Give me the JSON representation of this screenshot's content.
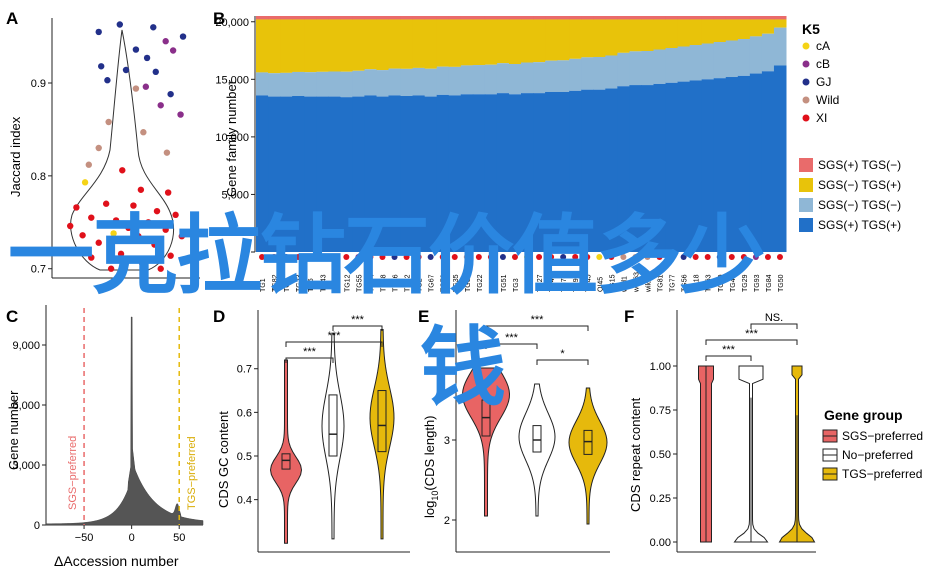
{
  "overlay": {
    "line1": "一克拉钻石价值多少",
    "line2": "钱"
  },
  "panels": {
    "A": "A",
    "B": "B",
    "C": "C",
    "D": "D",
    "E": "E",
    "F": "F"
  },
  "colors": {
    "cA": "#f5d316",
    "cB": "#8a2f8a",
    "GJ": "#22308a",
    "Wild": "#c49080",
    "XI": "#e0101a",
    "sgs_tgs_minus": "#e96b6b",
    "sgs_minus_tgs_plus": "#e8c30a",
    "sgs_minus_tgs_minus": "#8fb7d6",
    "sgs_plus_tgs_plus": "#2170c8",
    "sgs_pref": "#e86464",
    "no_pref": "#ffffff",
    "tgs_pref": "#e6b90c",
    "blue_text": "#2a86e0"
  },
  "chart_data": [
    {
      "panel": "A",
      "type": "scatter",
      "ylabel": "Jaccard index",
      "yticks": [
        "0.7",
        "0.8",
        "0.9"
      ],
      "ylim": [
        0.69,
        0.97
      ],
      "points": [
        {
          "g": "GJ",
          "x": 0.28,
          "y": 0.955
        },
        {
          "g": "GJ",
          "x": 0.45,
          "y": 0.963
        },
        {
          "g": "GJ",
          "x": 0.72,
          "y": 0.96
        },
        {
          "g": "GJ",
          "x": 0.96,
          "y": 0.95
        },
        {
          "g": "cB",
          "x": 0.82,
          "y": 0.945
        },
        {
          "g": "GJ",
          "x": 0.58,
          "y": 0.936
        },
        {
          "g": "GJ",
          "x": 0.67,
          "y": 0.927
        },
        {
          "g": "cB",
          "x": 0.88,
          "y": 0.935
        },
        {
          "g": "GJ",
          "x": 0.3,
          "y": 0.918
        },
        {
          "g": "GJ",
          "x": 0.5,
          "y": 0.914
        },
        {
          "g": "GJ",
          "x": 0.74,
          "y": 0.912
        },
        {
          "g": "GJ",
          "x": 0.35,
          "y": 0.903
        },
        {
          "g": "cB",
          "x": 0.66,
          "y": 0.896
        },
        {
          "g": "Wild",
          "x": 0.58,
          "y": 0.894
        },
        {
          "g": "GJ",
          "x": 0.86,
          "y": 0.888
        },
        {
          "g": "cB",
          "x": 0.78,
          "y": 0.876
        },
        {
          "g": "cB",
          "x": 0.94,
          "y": 0.866
        },
        {
          "g": "Wild",
          "x": 0.36,
          "y": 0.858
        },
        {
          "g": "Wild",
          "x": 0.64,
          "y": 0.847
        },
        {
          "g": "Wild",
          "x": 0.28,
          "y": 0.83
        },
        {
          "g": "Wild",
          "x": 0.83,
          "y": 0.825
        },
        {
          "g": "Wild",
          "x": 0.2,
          "y": 0.812
        },
        {
          "g": "XI",
          "x": 0.47,
          "y": 0.806
        },
        {
          "g": "cA",
          "x": 0.17,
          "y": 0.793
        },
        {
          "g": "XI",
          "x": 0.62,
          "y": 0.785
        },
        {
          "g": "XI",
          "x": 0.84,
          "y": 0.782
        },
        {
          "g": "XI",
          "x": 0.34,
          "y": 0.77
        },
        {
          "g": "XI",
          "x": 0.1,
          "y": 0.766
        },
        {
          "g": "XI",
          "x": 0.56,
          "y": 0.768
        },
        {
          "g": "XI",
          "x": 0.75,
          "y": 0.762
        },
        {
          "g": "XI",
          "x": 0.9,
          "y": 0.758
        },
        {
          "g": "XI",
          "x": 0.22,
          "y": 0.755
        },
        {
          "g": "XI",
          "x": 0.42,
          "y": 0.752
        },
        {
          "g": "cA",
          "x": 0.3,
          "y": 0.748
        },
        {
          "g": "XI",
          "x": 0.68,
          "y": 0.75
        },
        {
          "g": "XI",
          "x": 0.05,
          "y": 0.746
        },
        {
          "g": "XI",
          "x": 0.52,
          "y": 0.744
        },
        {
          "g": "cA",
          "x": 0.4,
          "y": 0.738
        },
        {
          "g": "XI",
          "x": 0.82,
          "y": 0.742
        },
        {
          "g": "XI",
          "x": 0.15,
          "y": 0.736
        },
        {
          "g": "XI",
          "x": 0.6,
          "y": 0.735
        },
        {
          "g": "XI",
          "x": 0.95,
          "y": 0.735
        },
        {
          "g": "XI",
          "x": 0.28,
          "y": 0.728
        },
        {
          "g": "XI",
          "x": 0.73,
          "y": 0.726
        },
        {
          "g": "XI",
          "x": 0.46,
          "y": 0.716
        },
        {
          "g": "XI",
          "x": 0.86,
          "y": 0.714
        },
        {
          "g": "XI",
          "x": 0.22,
          "y": 0.712
        },
        {
          "g": "XI",
          "x": 0.63,
          "y": 0.706
        },
        {
          "g": "XI",
          "x": 0.38,
          "y": 0.7
        },
        {
          "g": "XI",
          "x": 0.78,
          "y": 0.7
        }
      ]
    },
    {
      "panel": "B",
      "type": "bar",
      "ylabel": "Gene family number",
      "yticks": [
        "0",
        "5,000",
        "10,000",
        "15,000",
        "20,000"
      ],
      "ylim": [
        0,
        20500
      ],
      "legend_title": "K5",
      "legend_groups": [
        "cA",
        "cB",
        "GJ",
        "Wild",
        "XI"
      ],
      "legend_categories": [
        "SGS(+) TGS(−)",
        "SGS(−) TGS(+)",
        "SGS(−) TGS(−)",
        "SGS(+) TGS(+)"
      ],
      "tick_labels": [
        "TG1",
        "TG82",
        "TG8",
        "TG23",
        "TG6",
        "TG43",
        "TG19",
        "TG12",
        "TG55",
        "TG34",
        "TG38",
        "TG46",
        "TG42",
        "TG2",
        "TG67",
        "TG76",
        "TG35",
        "TG64",
        "TG22",
        "TG87",
        "TG51",
        "TG3",
        "TG33",
        "TG27",
        "TG47",
        "TG78",
        "TG91",
        "TG45",
        "QI45",
        "TG15",
        "wild1",
        "wild63",
        "wild72",
        "TG81",
        "TG77",
        "TG56",
        "TG18",
        "TG63",
        "TG90",
        "TG48",
        "TG29",
        "TG93",
        "TG84",
        "TG50"
      ],
      "sgs_plus_tgs_plus": [
        13600,
        13500,
        13500,
        13550,
        13500,
        13500,
        13500,
        13450,
        13500,
        13600,
        13500,
        13600,
        13550,
        13600,
        13500,
        13650,
        13600,
        13700,
        13700,
        13700,
        13800,
        13700,
        13800,
        13800,
        13900,
        13900,
        14000,
        14100,
        14100,
        14200,
        14400,
        14500,
        14500,
        14600,
        14700,
        14800,
        14900,
        15000,
        15100,
        15200,
        15300,
        15500,
        15700,
        16200
      ]
    },
    {
      "panel": "C",
      "type": "area",
      "xlabel": "ΔAccession number",
      "ylabel": "Gene number",
      "xticks": [
        "−50",
        "0",
        "50"
      ],
      "yticks": [
        "0",
        "3,000",
        "6,000",
        "9,000"
      ],
      "xlim": [
        -90,
        75
      ],
      "ylim": [
        0,
        11000
      ],
      "annotations": [
        "SGS−preferred",
        "TGS−preferred"
      ],
      "thresholds": [
        -50,
        50
      ]
    },
    {
      "panel": "D",
      "type": "violin",
      "ylabel": "CDS GC content",
      "yticks": [
        "0.4",
        "0.5",
        "0.6",
        "0.7"
      ],
      "ylim": [
        0.28,
        0.83
      ],
      "groups": [
        "SGS−preferred",
        "No−preferred",
        "TGS−preferred"
      ],
      "medians": [
        0.49,
        0.55,
        0.57
      ],
      "q1": [
        0.47,
        0.5,
        0.51
      ],
      "q3": [
        0.505,
        0.64,
        0.65
      ],
      "signif": [
        "***",
        "***",
        "***"
      ]
    },
    {
      "panel": "E",
      "type": "violin",
      "ylabel": "log10(CDS length)",
      "yticks": [
        "2",
        "3"
      ],
      "ylim": [
        1.6,
        4.6
      ],
      "groups": [
        "SGS−preferred",
        "No−preferred",
        "TGS−preferred"
      ],
      "medians": [
        3.28,
        3.0,
        2.98
      ],
      "q1": [
        3.05,
        2.85,
        2.82
      ],
      "q3": [
        3.5,
        3.18,
        3.12
      ],
      "signif": [
        "***",
        "***",
        "*"
      ]
    },
    {
      "panel": "F",
      "type": "violin",
      "ylabel": "CDS repeat content",
      "yticks": [
        "0.00",
        "0.25",
        "0.50",
        "0.75",
        "1.00"
      ],
      "ylim": [
        -0.03,
        1.28
      ],
      "groups": [
        "SGS−preferred",
        "No−preferred",
        "TGS−preferred"
      ],
      "legend_title": "Gene group",
      "signif": [
        "***",
        "***",
        "NS."
      ]
    }
  ]
}
